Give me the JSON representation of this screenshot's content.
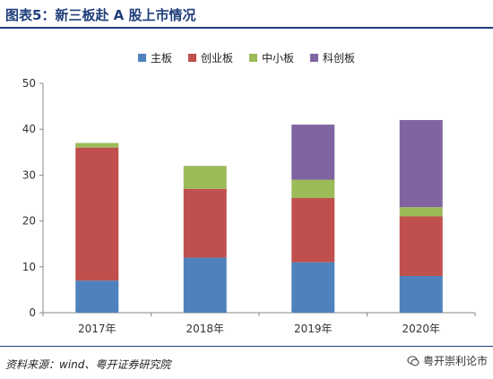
{
  "page": {
    "title": "图表5：新三板赴 A 股上市情况",
    "source": "资料来源：wind、粤开证券研究院",
    "watermark": "粤开崇利论市"
  },
  "chart_data": {
    "type": "bar",
    "stacked": true,
    "categories": [
      "2017年",
      "2018年",
      "2019年",
      "2020年"
    ],
    "series": [
      {
        "name": "主板",
        "color": "#4f81bd",
        "values": [
          7,
          12,
          11,
          8
        ]
      },
      {
        "name": "创业板",
        "color": "#c0504d",
        "values": [
          29,
          15,
          14,
          13
        ]
      },
      {
        "name": "中小板",
        "color": "#9bbb59",
        "values": [
          1,
          5,
          4,
          2
        ]
      },
      {
        "name": "科创板",
        "color": "#8064a2",
        "values": [
          0,
          0,
          12,
          19
        ]
      }
    ],
    "ylim": [
      0,
      50
    ],
    "yticks": [
      0,
      10,
      20,
      30,
      40,
      50
    ],
    "grid": false,
    "legend_position": "top"
  }
}
